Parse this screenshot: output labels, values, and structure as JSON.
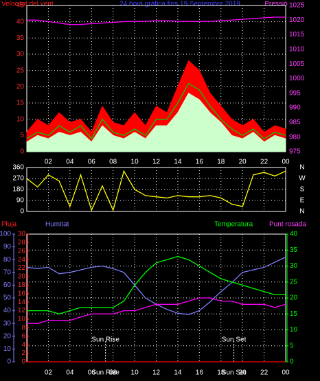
{
  "chart_data": [
    {
      "type": "line",
      "title": "24 hora gràfica fins 19 Septembre 2019",
      "ylabel": "Velocitat del vent",
      "y2label": "Pressió",
      "x": [
        0,
        1,
        2,
        3,
        4,
        5,
        6,
        7,
        8,
        9,
        10,
        11,
        12,
        13,
        14,
        15,
        16,
        17,
        18,
        19,
        20,
        21,
        22,
        23,
        24
      ],
      "xlim": [
        0,
        24
      ],
      "xticks": [
        {
          "value": 2,
          "label": "02"
        },
        {
          "value": 4,
          "label": "04"
        },
        {
          "value": 6,
          "label": "06"
        },
        {
          "value": 8,
          "label": "08"
        },
        10,
        12,
        14,
        16,
        18,
        20,
        22,
        {
          "value": 24,
          "label": "00"
        }
      ],
      "ylim": [
        0,
        45
      ],
      "yticks": [
        0,
        5,
        10,
        15,
        20,
        25,
        30,
        35,
        40,
        45
      ],
      "y2lim": [
        975,
        1025
      ],
      "y2ticks": [
        975,
        980,
        985,
        990,
        995,
        1000,
        1005,
        1010,
        1015,
        1020,
        1025
      ],
      "grid": true,
      "series": [
        {
          "color": "#ff0000",
          "fill": true,
          "values": [
            6,
            10,
            8,
            12,
            9,
            10,
            6,
            14,
            9,
            8,
            12,
            8,
            14,
            12,
            20,
            28,
            25,
            18,
            14,
            10,
            8,
            10,
            6,
            8,
            7
          ]
        },
        {
          "color": "#ccffcc",
          "fill": true,
          "values": [
            3,
            5,
            4,
            6,
            5,
            6,
            3,
            8,
            5,
            4,
            6,
            4,
            8,
            8,
            12,
            18,
            16,
            12,
            9,
            5,
            4,
            6,
            3,
            5,
            4
          ]
        },
        {
          "color": "#00cc00",
          "values": [
            4,
            6,
            5,
            8,
            6,
            8,
            4,
            10,
            6,
            5,
            7,
            5,
            10,
            10,
            15,
            21,
            19,
            14,
            10,
            7,
            5,
            7,
            4,
            6,
            5
          ]
        },
        {
          "color": "#ff00ff",
          "axis": "y2",
          "values": [
            1020,
            1020,
            1019.5,
            1019,
            1018.5,
            1018.5,
            1018.8,
            1019,
            1019.2,
            1019.5,
            1019.5,
            1019.6,
            1019.8,
            1019.8,
            1019.6,
            1019.5,
            1019.5,
            1019.6,
            1019.8,
            1020,
            1020.3,
            1020.5,
            1020.8,
            1021,
            1021
          ]
        }
      ]
    },
    {
      "type": "line",
      "x": [
        0,
        1,
        2,
        3,
        4,
        5,
        6,
        7,
        8,
        9,
        10,
        11,
        12,
        13,
        14,
        15,
        16,
        17,
        18,
        19,
        20,
        21,
        22,
        23,
        24
      ],
      "xlim": [
        0,
        24
      ],
      "xticks": [
        {
          "value": 2,
          "label": "02"
        },
        {
          "value": 4,
          "label": "04"
        },
        {
          "value": 6,
          "label": "06"
        },
        {
          "value": 8,
          "label": "08"
        },
        10,
        12,
        14,
        16,
        18,
        20,
        22,
        {
          "value": 24,
          "label": "00"
        }
      ],
      "ylim": [
        0,
        360
      ],
      "yticks": [
        0,
        90,
        180,
        270,
        360
      ],
      "grid": true,
      "compass": [
        "N",
        "W",
        "S",
        "E",
        "N"
      ],
      "series": [
        {
          "color": "#ffff00",
          "values": [
            270,
            200,
            300,
            250,
            40,
            300,
            10,
            210,
            10,
            330,
            180,
            130,
            120,
            110,
            130,
            120,
            120,
            130,
            110,
            60,
            40,
            300,
            320,
            290,
            330
          ]
        }
      ]
    },
    {
      "type": "line",
      "x": [
        0,
        1,
        2,
        3,
        4,
        5,
        6,
        7,
        8,
        9,
        10,
        11,
        12,
        13,
        14,
        15,
        16,
        17,
        18,
        19,
        20,
        21,
        22,
        23,
        24
      ],
      "xlim": [
        0,
        24
      ],
      "xticks": [
        {
          "value": 2,
          "label": "02"
        },
        {
          "value": 4,
          "label": "04"
        },
        {
          "value": 6,
          "label": "06"
        },
        {
          "value": 8,
          "label": "08"
        },
        10,
        12,
        14,
        16,
        18,
        20,
        22,
        {
          "value": 24,
          "label": "00"
        }
      ],
      "ylim": [
        0,
        100
      ],
      "yticks": [
        0,
        10,
        20,
        30,
        40,
        50,
        60,
        70,
        80,
        90,
        100
      ],
      "y2lim": [
        0,
        40
      ],
      "y2ticks": [
        0,
        5,
        10,
        15,
        20,
        25,
        30,
        35,
        40
      ],
      "y3lim": [
        0,
        30
      ],
      "y3ticks": [
        0,
        2,
        4,
        6,
        8,
        10,
        12,
        14,
        16,
        18,
        20,
        22,
        24,
        26,
        28,
        30
      ],
      "grid": true,
      "annotations": [
        {
          "text": "Sun Rise",
          "x": 7.3
        },
        {
          "text": "Sun Set",
          "x": 19.2
        }
      ],
      "series": [
        {
          "name": "Pluja",
          "color": "#ff0000",
          "axis": "y3",
          "values": [
            0,
            0,
            0,
            0,
            0,
            0,
            0,
            0,
            0,
            0,
            0,
            0,
            0,
            0,
            0,
            0,
            0,
            0,
            0,
            0,
            0,
            0,
            0,
            0,
            0
          ]
        },
        {
          "name": "Humitat",
          "color": "#8080ff",
          "values": [
            74,
            73,
            74,
            69,
            70,
            72,
            74,
            75,
            73,
            70,
            60,
            50,
            45,
            41,
            38,
            37,
            40,
            47,
            55,
            62,
            70,
            72,
            74,
            78,
            82
          ]
        },
        {
          "name": "Temperatura",
          "color": "#00ff00",
          "axis": "y2",
          "values": [
            16,
            16,
            16,
            15,
            16,
            17,
            17,
            17,
            17,
            19,
            24,
            28,
            31,
            32,
            33,
            32,
            30,
            28,
            26,
            25,
            24,
            23,
            22,
            21,
            21
          ]
        },
        {
          "name": "Punt rosada",
          "color": "#ff00ff",
          "axis": "y2",
          "values": [
            12,
            12,
            13,
            13,
            13,
            14,
            15,
            15,
            15,
            16,
            16,
            17,
            18,
            18,
            18,
            19,
            20,
            20,
            19,
            19,
            18,
            18,
            18,
            17,
            18
          ]
        }
      ]
    }
  ]
}
